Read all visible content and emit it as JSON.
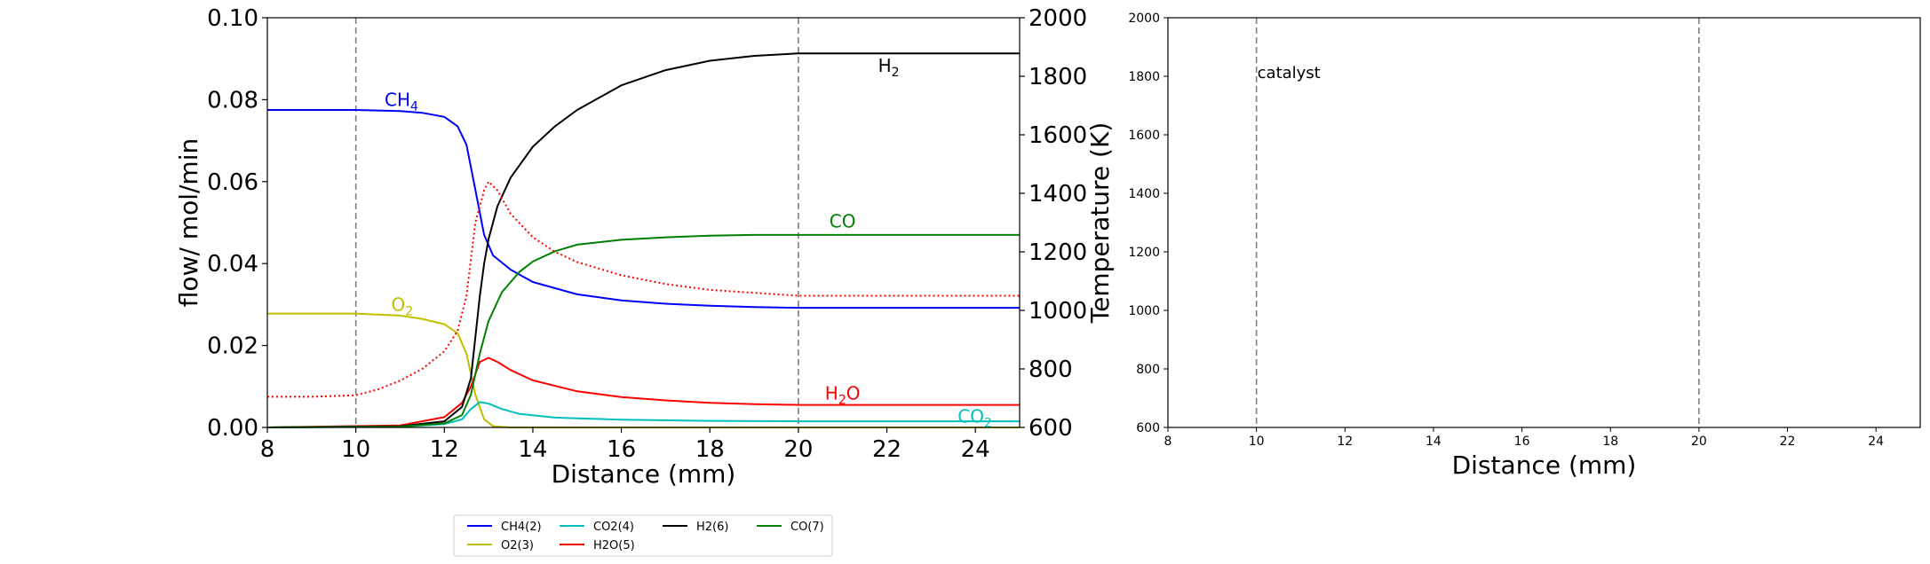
{
  "chart_data": [
    {
      "type": "line",
      "xlabel": "Distance (mm)",
      "ylabel": "flow/ mol/min",
      "y2label": "Temperature (K)",
      "xlim": [
        8,
        25
      ],
      "ylim": [
        0,
        0.1
      ],
      "y2lim": [
        600,
        2000
      ],
      "xticks": [
        "8",
        "10",
        "12",
        "14",
        "16",
        "18",
        "20",
        "22",
        "24"
      ],
      "yticks": [
        "0.00",
        "0.02",
        "0.04",
        "0.06",
        "0.08",
        "0.10"
      ],
      "y2ticks": [
        "600",
        "800",
        "1000",
        "1200",
        "1400",
        "1600",
        "1800",
        "2000"
      ],
      "vlines": [
        10,
        20
      ],
      "vline_style": "dashed, gray",
      "grid": false,
      "series": [
        {
          "name": "CH4(2)",
          "color": "#0000ff",
          "x": [
            8,
            10,
            11,
            11.5,
            12,
            12.3,
            12.5,
            12.7,
            12.9,
            13.1,
            13.5,
            14,
            15,
            16,
            17,
            18,
            19,
            20,
            25
          ],
          "y": [
            0.0775,
            0.0775,
            0.0772,
            0.0768,
            0.0758,
            0.0735,
            0.069,
            0.058,
            0.047,
            0.042,
            0.0385,
            0.0355,
            0.0325,
            0.031,
            0.0302,
            0.0297,
            0.0294,
            0.0292,
            0.0292
          ]
        },
        {
          "name": "O2(3)",
          "color": "#bfbf00",
          "x": [
            8,
            10,
            11,
            11.5,
            12,
            12.3,
            12.5,
            12.7,
            12.9,
            13.1,
            13.5,
            25
          ],
          "y": [
            0.0278,
            0.0278,
            0.0273,
            0.0265,
            0.0252,
            0.023,
            0.018,
            0.008,
            0.002,
            0.0003,
            0,
            0
          ]
        },
        {
          "name": "CO2(4)",
          "color": "#00bfbf",
          "x": [
            8,
            11,
            12,
            12.4,
            12.6,
            12.8,
            13.0,
            13.3,
            13.7,
            14.5,
            16,
            18,
            20,
            25
          ],
          "y": [
            0,
            0.0002,
            0.0008,
            0.002,
            0.0045,
            0.0062,
            0.0058,
            0.0045,
            0.0033,
            0.0024,
            0.0019,
            0.0016,
            0.0015,
            0.0015
          ]
        },
        {
          "name": "H2O(5)",
          "color": "#ff0000",
          "x": [
            8,
            11,
            12,
            12.4,
            12.6,
            12.8,
            13.0,
            13.2,
            13.5,
            14,
            15,
            16,
            17,
            18,
            19,
            20,
            25
          ],
          "y": [
            0,
            0.0005,
            0.0025,
            0.006,
            0.01,
            0.016,
            0.017,
            0.016,
            0.014,
            0.0115,
            0.0088,
            0.0074,
            0.0066,
            0.006,
            0.0057,
            0.0055,
            0.0055
          ]
        },
        {
          "name": "H2(6)",
          "color": "#000000",
          "x": [
            8,
            11,
            12,
            12.4,
            12.6,
            12.8,
            12.9,
            13.0,
            13.2,
            13.5,
            14,
            14.5,
            15,
            16,
            17,
            18,
            19,
            20,
            25
          ],
          "y": [
            0,
            0.0003,
            0.0015,
            0.005,
            0.012,
            0.032,
            0.04,
            0.046,
            0.054,
            0.061,
            0.0685,
            0.0735,
            0.0775,
            0.0835,
            0.0872,
            0.0895,
            0.0907,
            0.0913,
            0.0913
          ]
        },
        {
          "name": "CO(7)",
          "color": "#008000",
          "x": [
            8,
            11,
            12,
            12.4,
            12.6,
            12.8,
            13.0,
            13.3,
            13.7,
            14,
            14.5,
            15,
            16,
            17,
            18,
            19,
            20,
            25
          ],
          "y": [
            0,
            0.0002,
            0.001,
            0.003,
            0.008,
            0.018,
            0.026,
            0.033,
            0.038,
            0.0405,
            0.043,
            0.0446,
            0.0458,
            0.0464,
            0.0468,
            0.047,
            0.047,
            0.047
          ]
        }
      ],
      "temperature": {
        "color": "#ff0000",
        "style": "dotted",
        "x": [
          8,
          9,
          10,
          10.5,
          11,
          11.5,
          12,
          12.3,
          12.5,
          12.7,
          12.9,
          13.0,
          13.2,
          13.5,
          14,
          14.5,
          15,
          16,
          17,
          18,
          19,
          20,
          25
        ],
        "y": [
          705,
          705,
          710,
          730,
          760,
          800,
          860,
          930,
          1050,
          1300,
          1410,
          1440,
          1410,
          1330,
          1250,
          1200,
          1165,
          1120,
          1090,
          1070,
          1060,
          1050,
          1050
        ]
      },
      "annotations": [
        {
          "base": "CH",
          "sub": "4",
          "x": 10.65,
          "y": 0.0785,
          "color": "#0000ff"
        },
        {
          "base": "O",
          "sub": "2",
          "x": 10.8,
          "y": 0.0285,
          "color": "#bfbf00"
        },
        {
          "base": "H",
          "sub": "2",
          "x": 21.8,
          "y": 0.0868,
          "color": "#000000"
        },
        {
          "base": "CO",
          "sub": "",
          "x": 20.7,
          "y": 0.0488,
          "color": "#008000"
        },
        {
          "base": "H",
          "sub": "2",
          "post": "O",
          "x": 20.6,
          "y": 0.0068,
          "color": "#ff0000"
        },
        {
          "base": "CO",
          "sub": "2",
          "x": 23.6,
          "y": 0.0012,
          "color": "#00bfbf"
        }
      ],
      "legend": {
        "placement": "bottom-center",
        "entries": [
          {
            "label": "CH4(2)",
            "color": "#0000ff"
          },
          {
            "label": "CO2(4)",
            "color": "#00bfbf"
          },
          {
            "label": "H2(6)",
            "color": "#000000"
          },
          {
            "label": "CO(7)",
            "color": "#008000"
          },
          {
            "label": "O2(3)",
            "color": "#bfbf00"
          },
          {
            "label": "H2O(5)",
            "color": "#ff0000"
          }
        ]
      }
    },
    {
      "type": "line",
      "xlabel": "Distance (mm)",
      "xlim": [
        8,
        25
      ],
      "ylim": [
        600,
        2000
      ],
      "xticks": [
        "8",
        "10",
        "12",
        "14",
        "16",
        "18",
        "20",
        "22",
        "24"
      ],
      "yticks": [
        "600",
        "800",
        "1000",
        "1200",
        "1400",
        "1600",
        "1800",
        "2000"
      ],
      "vlines": [
        10,
        20
      ],
      "annotations": [
        {
          "text": "catalyst",
          "x": 10,
          "y": 1800
        }
      ],
      "series": []
    }
  ]
}
